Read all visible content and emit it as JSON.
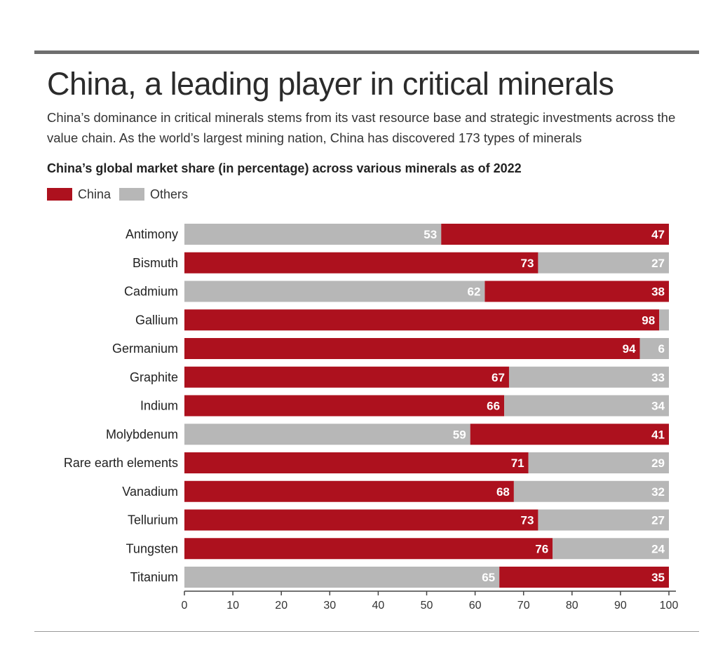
{
  "title": "China, a leading player in critical minerals",
  "subtitle": "China’s dominance in critical minerals stems from its vast resource base and strategic investments across the value chain. As the world’s largest mining nation, China has discovered 173 types of minerals",
  "colors": {
    "china": "#ad111e",
    "others": "#b7b7b7",
    "label_text": "#ffffff",
    "axis": "#444444"
  },
  "chart_data": {
    "type": "bar",
    "orientation": "horizontal",
    "stacked": true,
    "title": "China’s global market share (in percentage) across various minerals as of 2022",
    "legend": [
      {
        "name": "China",
        "color": "#ad111e"
      },
      {
        "name": "Others",
        "color": "#b7b7b7"
      }
    ],
    "legend_position": "top-left",
    "categories": [
      "Antimony",
      "Bismuth",
      "Cadmium",
      "Gallium",
      "Germanium",
      "Graphite",
      "Indium",
      "Molybdenum",
      "Rare earth elements",
      "Vanadium",
      "Tellurium",
      "Tungsten",
      "Titanium"
    ],
    "china_first": [
      false,
      true,
      false,
      true,
      true,
      true,
      true,
      false,
      true,
      true,
      true,
      true,
      false
    ],
    "series": [
      {
        "name": "China",
        "values": [
          47,
          73,
          38,
          98,
          94,
          67,
          66,
          41,
          71,
          68,
          73,
          76,
          35
        ]
      },
      {
        "name": "Others",
        "values": [
          53,
          27,
          62,
          2,
          6,
          33,
          34,
          59,
          29,
          32,
          27,
          24,
          65
        ]
      }
    ],
    "show_label": [
      [
        true,
        true
      ],
      [
        true,
        true
      ],
      [
        true,
        true
      ],
      [
        true,
        false
      ],
      [
        true,
        true
      ],
      [
        true,
        true
      ],
      [
        true,
        true
      ],
      [
        true,
        true
      ],
      [
        true,
        true
      ],
      [
        true,
        true
      ],
      [
        true,
        true
      ],
      [
        true,
        true
      ],
      [
        true,
        true
      ]
    ],
    "xlim": [
      0,
      100
    ],
    "xticks": [
      0,
      10,
      20,
      30,
      40,
      50,
      60,
      70,
      80,
      90,
      100
    ],
    "xlabel": "",
    "ylabel": "",
    "grid": false
  }
}
